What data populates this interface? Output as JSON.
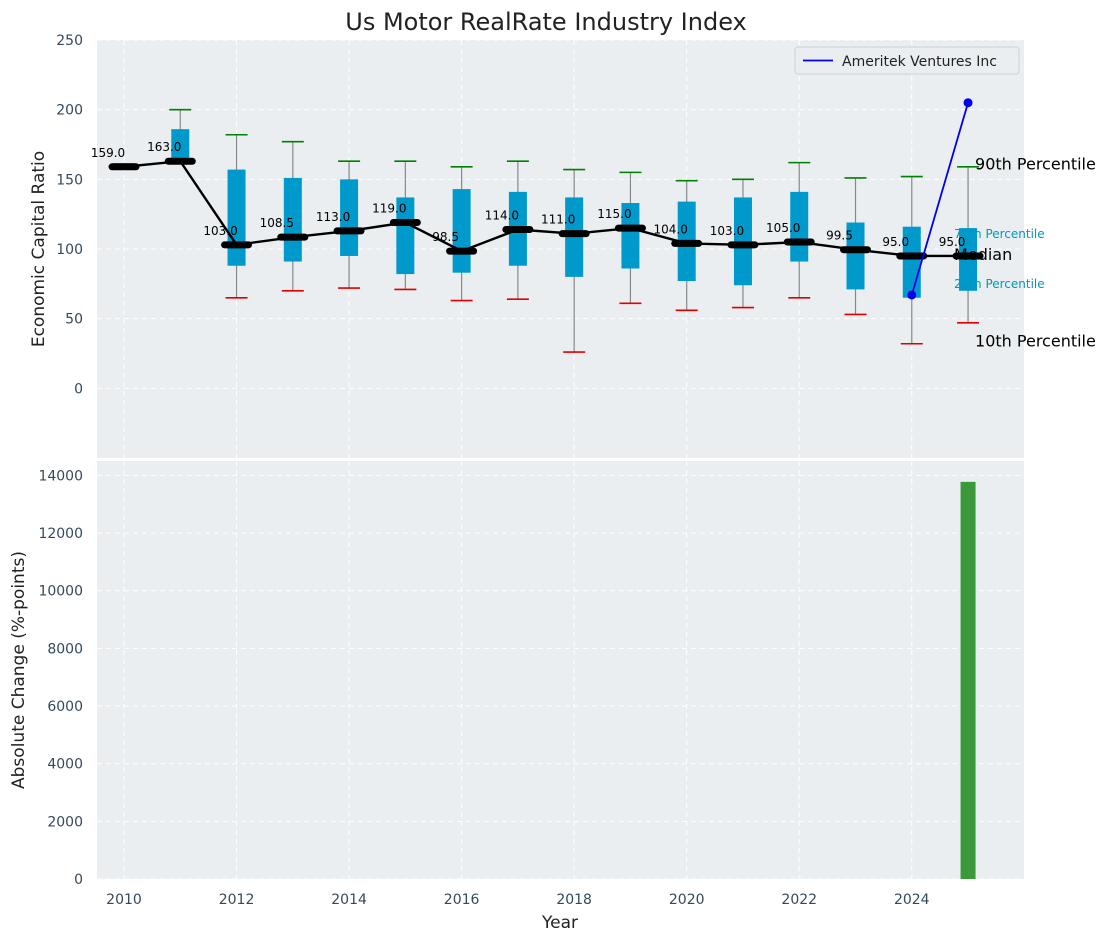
{
  "chart_data": [
    {
      "type": "box",
      "title": "Us Motor RealRate Industry Index",
      "xlabel": "",
      "ylabel": "Economic Capital Ratio",
      "ylim": [
        -50,
        250
      ],
      "yticks": [
        0,
        50,
        100,
        150,
        200,
        250
      ],
      "grid": true,
      "years": [
        2010,
        2011,
        2012,
        2013,
        2014,
        2015,
        2016,
        2017,
        2018,
        2019,
        2020,
        2021,
        2022,
        2023,
        2024,
        2025
      ],
      "p10": [
        159,
        163,
        65,
        70,
        72,
        71,
        63,
        64,
        26,
        61,
        56,
        58,
        65,
        53,
        32,
        47
      ],
      "p25": [
        159,
        163,
        88,
        91,
        95,
        82,
        83,
        88,
        80,
        86,
        77,
        74,
        91,
        71,
        65,
        70
      ],
      "median": [
        159.0,
        163.0,
        103.0,
        108.5,
        113.0,
        119.0,
        98.5,
        114.0,
        111.0,
        115.0,
        104.0,
        103.0,
        105.0,
        99.5,
        95.0,
        95.0
      ],
      "median_labels": [
        "159.0",
        "163.0",
        "103.0",
        "108.5",
        "113.0",
        "119.0",
        "98.5",
        "114.0",
        "111.0",
        "115.0",
        "104.0",
        "103.0",
        "105.0",
        "99.5",
        "95.0",
        "95.0"
      ],
      "p75": [
        159,
        186,
        157,
        151,
        150,
        137,
        143,
        141,
        137,
        133,
        134,
        137,
        141,
        119,
        116,
        115
      ],
      "p90": [
        161,
        200,
        182,
        177,
        163,
        163,
        159,
        163,
        157,
        155,
        149,
        150,
        162,
        151,
        152,
        159
      ],
      "company_series": {
        "name": "Ameritek Ventures Inc",
        "x": [
          2024,
          2025
        ],
        "y": [
          67,
          205
        ],
        "color": "#0000ee"
      },
      "annotations": {
        "p90": "90th Percentile",
        "p75": "75th Percentile",
        "median": "Median",
        "p25": "25th Percentile",
        "p10": "10th Percentile"
      },
      "legend": {
        "position": "top-right",
        "entries": [
          "Ameritek Ventures Inc"
        ]
      },
      "colors": {
        "box": "#0099cc",
        "median_line": "#000000",
        "p90_cap": "#008000",
        "p10_cap": "#e00000",
        "whisker": "#888888",
        "annotation_teal": "#0099bb"
      }
    },
    {
      "type": "bar",
      "title": "",
      "xlabel": "Year",
      "ylabel": "Absolute Change (%-points)",
      "ylim": [
        0,
        14500
      ],
      "yticks": [
        0,
        2000,
        4000,
        6000,
        8000,
        10000,
        12000,
        14000
      ],
      "xticks": [
        2010,
        2012,
        2014,
        2016,
        2018,
        2020,
        2022,
        2024
      ],
      "grid": true,
      "x": [
        2025
      ],
      "values": [
        13776
      ],
      "color": "#3a9a3a"
    }
  ],
  "colors": {
    "plot_bg": "#eaeef0",
    "grid": "#ffffff",
    "tick_text": "#34495e",
    "text": "#222222"
  }
}
